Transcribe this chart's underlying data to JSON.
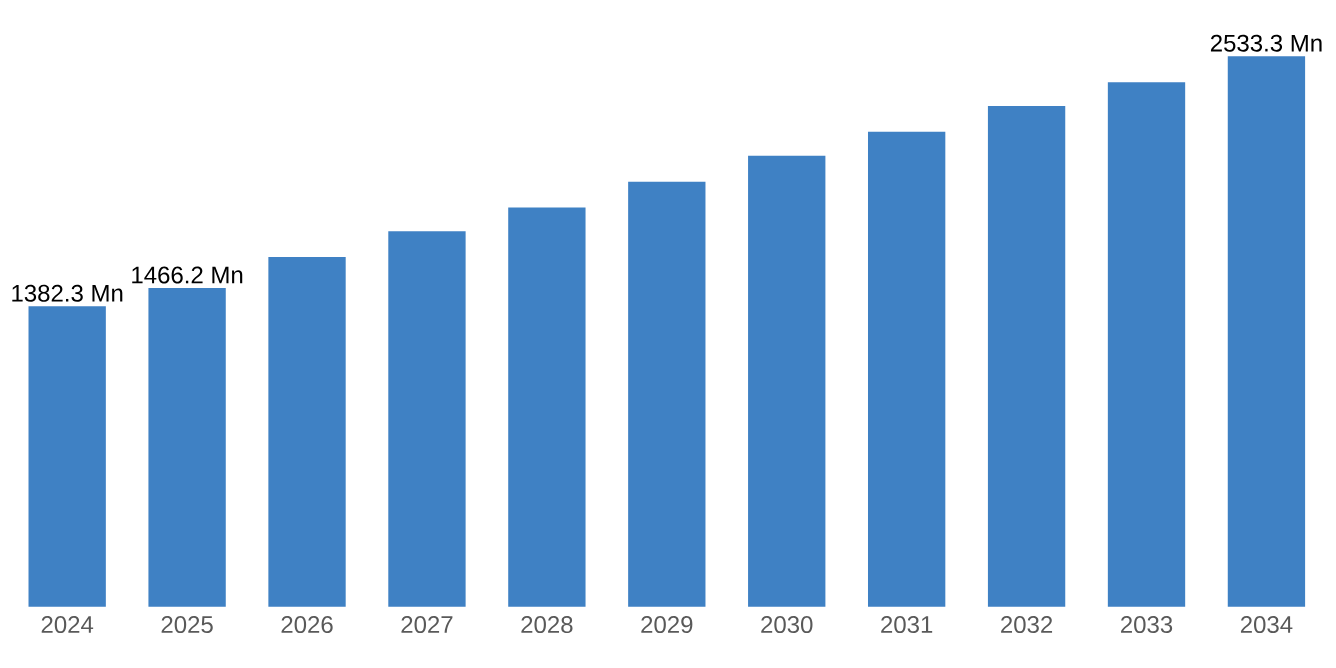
{
  "chart_data": {
    "type": "bar",
    "categories": [
      "2024",
      "2025",
      "2026",
      "2027",
      "2028",
      "2029",
      "2030",
      "2031",
      "2032",
      "2033",
      "2034"
    ],
    "values": [
      1382.3,
      1466.2,
      1609,
      1728,
      1837,
      1956,
      2075,
      2185,
      2304,
      2413,
      2533.3
    ],
    "value_labels": [
      "1382.3 Mn",
      "1466.2 Mn",
      null,
      null,
      null,
      null,
      null,
      null,
      null,
      null,
      "2533.3 Mn"
    ],
    "color": "#3f81c4"
  }
}
